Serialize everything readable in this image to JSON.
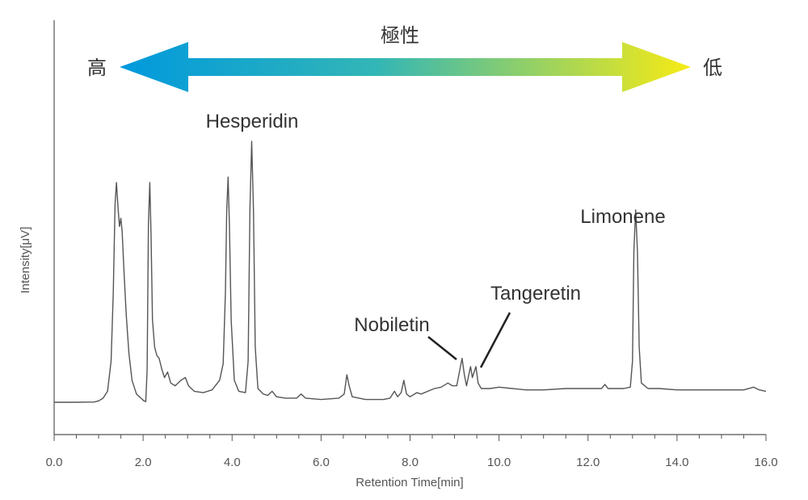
{
  "chart_data": {
    "type": "line",
    "title": "",
    "xlabel": "Retention Time[min]",
    "ylabel": "Intensity[μV]",
    "xlim": [
      0.0,
      16.0
    ],
    "ylim": [
      0,
      100
    ],
    "x_ticks": [
      "0.0",
      "2.0",
      "4.0",
      "6.0",
      "8.0",
      "10.0",
      "12.0",
      "14.0",
      "16.0"
    ],
    "x_tick_values": [
      0,
      2,
      4,
      6,
      8,
      10,
      12,
      14,
      16
    ],
    "grid": false,
    "legend": "none",
    "line_color": "#555555",
    "polarity_arrow": {
      "title": "極性",
      "high_label": "高",
      "low_label": "低",
      "color_start": "#0099dd",
      "color_mid": "#33b6b6",
      "color_end": "#f7eb14"
    },
    "annotations": [
      {
        "text": "Hesperidin",
        "x": 4.45
      },
      {
        "text": "Nobiletin",
        "x": 9.15
      },
      {
        "text": "Tangeretin",
        "x": 9.45
      },
      {
        "text": "Limonene",
        "x": 13.07
      }
    ],
    "series": [
      {
        "points": [
          [
            0.0,
            0.0
          ],
          [
            0.5,
            0.0
          ],
          [
            0.9,
            0.1
          ],
          [
            1.0,
            0.5
          ],
          [
            1.1,
            1.5
          ],
          [
            1.2,
            4.0
          ],
          [
            1.28,
            15.0
          ],
          [
            1.33,
            40.0
          ],
          [
            1.37,
            72.0
          ],
          [
            1.4,
            80.0
          ],
          [
            1.44,
            70.0
          ],
          [
            1.47,
            64.0
          ],
          [
            1.5,
            67.0
          ],
          [
            1.53,
            62.0
          ],
          [
            1.57,
            48.0
          ],
          [
            1.62,
            32.0
          ],
          [
            1.68,
            18.0
          ],
          [
            1.75,
            8.0
          ],
          [
            1.85,
            3.0
          ],
          [
            1.95,
            1.5
          ],
          [
            2.02,
            0.5
          ],
          [
            2.06,
            0.2
          ],
          [
            2.09,
            12.0
          ],
          [
            2.12,
            65.0
          ],
          [
            2.15,
            80.0
          ],
          [
            2.18,
            60.0
          ],
          [
            2.21,
            30.0
          ],
          [
            2.26,
            20.0
          ],
          [
            2.31,
            17.0
          ],
          [
            2.36,
            16.0
          ],
          [
            2.42,
            12.0
          ],
          [
            2.48,
            9.0
          ],
          [
            2.55,
            11.0
          ],
          [
            2.62,
            7.0
          ],
          [
            2.72,
            6.0
          ],
          [
            2.85,
            8.0
          ],
          [
            2.95,
            9.0
          ],
          [
            3.02,
            6.0
          ],
          [
            3.15,
            4.0
          ],
          [
            3.35,
            3.5
          ],
          [
            3.55,
            4.5
          ],
          [
            3.72,
            8.0
          ],
          [
            3.8,
            14.0
          ],
          [
            3.85,
            40.0
          ],
          [
            3.88,
            70.0
          ],
          [
            3.91,
            82.0
          ],
          [
            3.94,
            65.0
          ],
          [
            3.98,
            30.0
          ],
          [
            4.05,
            8.0
          ],
          [
            4.15,
            4.0
          ],
          [
            4.3,
            3.5
          ],
          [
            4.36,
            15.0
          ],
          [
            4.4,
            70.0
          ],
          [
            4.44,
            95.0
          ],
          [
            4.48,
            70.0
          ],
          [
            4.52,
            20.0
          ],
          [
            4.58,
            5.0
          ],
          [
            4.7,
            3.0
          ],
          [
            4.8,
            2.5
          ],
          [
            4.9,
            4.0
          ],
          [
            5.0,
            2.0
          ],
          [
            5.2,
            1.5
          ],
          [
            5.45,
            1.5
          ],
          [
            5.55,
            3.0
          ],
          [
            5.65,
            1.5
          ],
          [
            6.0,
            1.0
          ],
          [
            6.4,
            1.5
          ],
          [
            6.52,
            3.0
          ],
          [
            6.58,
            10.0
          ],
          [
            6.63,
            6.0
          ],
          [
            6.7,
            2.0
          ],
          [
            7.0,
            1.0
          ],
          [
            7.4,
            1.0
          ],
          [
            7.55,
            1.5
          ],
          [
            7.65,
            4.0
          ],
          [
            7.72,
            2.0
          ],
          [
            7.8,
            3.5
          ],
          [
            7.86,
            8.0
          ],
          [
            7.92,
            3.0
          ],
          [
            8.0,
            2.0
          ],
          [
            8.15,
            3.5
          ],
          [
            8.25,
            3.0
          ],
          [
            8.4,
            4.0
          ],
          [
            8.55,
            5.0
          ],
          [
            8.7,
            5.5
          ],
          [
            8.85,
            7.0
          ],
          [
            8.95,
            6.0
          ],
          [
            9.05,
            6.0
          ],
          [
            9.12,
            12.0
          ],
          [
            9.17,
            16.0
          ],
          [
            9.22,
            10.0
          ],
          [
            9.27,
            6.0
          ],
          [
            9.32,
            10.0
          ],
          [
            9.36,
            13.0
          ],
          [
            9.4,
            9.0
          ],
          [
            9.44,
            11.0
          ],
          [
            9.48,
            13.0
          ],
          [
            9.53,
            7.0
          ],
          [
            9.6,
            5.0
          ],
          [
            9.8,
            5.0
          ],
          [
            10.0,
            5.5
          ],
          [
            10.3,
            5.0
          ],
          [
            10.6,
            4.5
          ],
          [
            11.0,
            4.5
          ],
          [
            11.5,
            5.0
          ],
          [
            12.0,
            5.0
          ],
          [
            12.3,
            5.0
          ],
          [
            12.38,
            6.5
          ],
          [
            12.45,
            5.0
          ],
          [
            12.8,
            5.0
          ],
          [
            12.95,
            5.5
          ],
          [
            13.0,
            15.0
          ],
          [
            13.03,
            55.0
          ],
          [
            13.07,
            70.0
          ],
          [
            13.11,
            55.0
          ],
          [
            13.15,
            20.0
          ],
          [
            13.2,
            7.0
          ],
          [
            13.35,
            5.0
          ],
          [
            13.6,
            5.0
          ],
          [
            14.0,
            4.5
          ],
          [
            14.5,
            4.5
          ],
          [
            15.0,
            4.5
          ],
          [
            15.5,
            4.5
          ],
          [
            15.72,
            5.5
          ],
          [
            15.85,
            4.5
          ],
          [
            16.0,
            4.0
          ]
        ]
      }
    ]
  }
}
